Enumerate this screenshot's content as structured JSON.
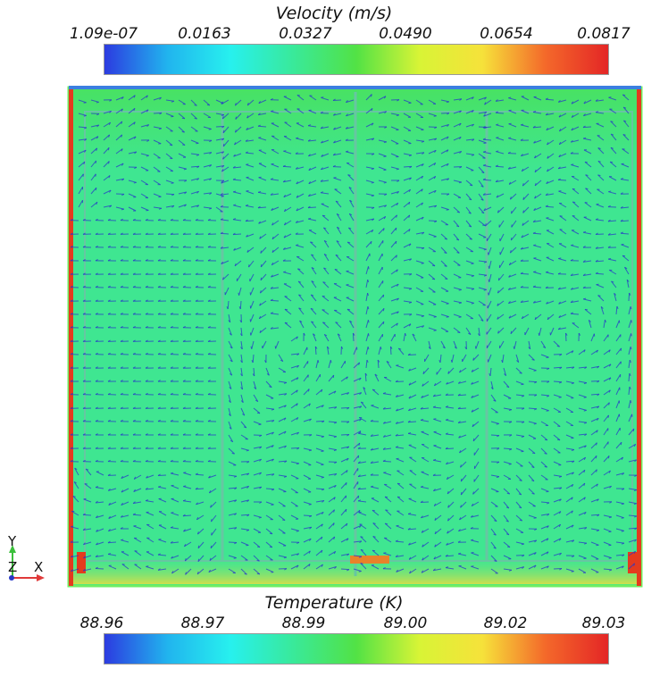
{
  "velocity_scale": {
    "title": "Velocity (m/s)",
    "ticks": [
      "1.09e-07",
      "0.0163",
      "0.0327",
      "0.0490",
      "0.0654",
      "0.0817"
    ]
  },
  "temperature_scale": {
    "title": "Temperature (K)",
    "ticks": [
      "88.96",
      "88.97",
      "88.99",
      "89.00",
      "89.02",
      "89.03"
    ]
  },
  "colormap": [
    "#2c3be0",
    "#21b4ee",
    "#27f0ee",
    "#39e99a",
    "#52e245",
    "#d8f436",
    "#f6e23a",
    "#f4692a",
    "#e42626"
  ],
  "orientation_triad": {
    "y": "Y",
    "z": "Z",
    "x": "X"
  },
  "colors": {
    "fluid": "#3fe691",
    "fluid_edge": "#6fee62",
    "wall_hot": "#e43a1e",
    "arrow": "#2739c8",
    "partition": "#67c6a2"
  }
}
